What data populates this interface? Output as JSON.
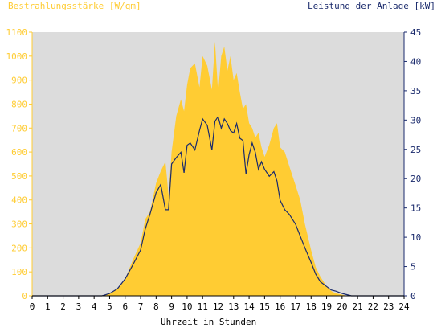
{
  "chart_data": {
    "type": "area",
    "left_axis_title": "Bestrahlungsstärke [W/qm]",
    "right_axis_title": "Leistung der Anlage [kW]",
    "xlabel": "Uhrzeit in Stunden",
    "x_ticks": [
      "0",
      "1",
      "2",
      "3",
      "4",
      "5",
      "6",
      "7",
      "8",
      "9",
      "10",
      "11",
      "12",
      "13",
      "14",
      "15",
      "16",
      "17",
      "18",
      "19",
      "20",
      "21",
      "22",
      "23",
      "24"
    ],
    "y_left_ticks": [
      "0",
      "100",
      "200",
      "300",
      "400",
      "500",
      "600",
      "700",
      "800",
      "900",
      "1000",
      "1100"
    ],
    "y_right_ticks": [
      "0",
      "5",
      "10",
      "15",
      "20",
      "25",
      "30",
      "35",
      "40",
      "45"
    ],
    "xlim": [
      0,
      24
    ],
    "ylim_left": [
      0,
      1100
    ],
    "ylim_right": [
      0,
      45
    ],
    "grid": false,
    "colors": {
      "irradiance": "#ffcc33",
      "power": "#1a2a6c",
      "plot_bg": "#dcdcdc",
      "left_axis": "#ffcc33",
      "right_axis": "#1a2a6c"
    },
    "series": [
      {
        "name": "Bestrahlungsstärke",
        "axis": "left",
        "kind": "area",
        "x": [
          0,
          4.5,
          5,
          5.5,
          6,
          6.5,
          7,
          7.3,
          7.6,
          8,
          8.3,
          8.6,
          8.8,
          9,
          9.3,
          9.6,
          9.8,
          10,
          10.2,
          10.5,
          10.8,
          11,
          11.3,
          11.6,
          11.8,
          12,
          12.2,
          12.4,
          12.6,
          12.8,
          13,
          13.2,
          13.4,
          13.6,
          13.8,
          14,
          14.2,
          14.4,
          14.6,
          14.8,
          15,
          15.3,
          15.6,
          15.8,
          16,
          16.3,
          16.6,
          17,
          17.3,
          17.6,
          18,
          18.3,
          18.6,
          19,
          19.3,
          19.6,
          20,
          20.3,
          20.6,
          21,
          24
        ],
        "y": [
          0,
          0,
          10,
          30,
          70,
          150,
          220,
          320,
          350,
          470,
          520,
          560,
          420,
          600,
          750,
          820,
          770,
          880,
          950,
          970,
          870,
          1000,
          960,
          860,
          1060,
          850,
          1000,
          1040,
          940,
          1000,
          900,
          930,
          850,
          780,
          800,
          720,
          700,
          660,
          680,
          620,
          580,
          630,
          700,
          720,
          620,
          600,
          540,
          460,
          400,
          300,
          190,
          120,
          80,
          40,
          20,
          10,
          5,
          0,
          0,
          0,
          0
        ]
      },
      {
        "name": "Leistung der Anlage",
        "axis": "right",
        "kind": "line",
        "x": [
          0,
          4.5,
          5,
          5.5,
          6,
          6.5,
          7,
          7.3,
          7.6,
          8,
          8.3,
          8.6,
          8.8,
          9,
          9.3,
          9.6,
          9.8,
          10,
          10.2,
          10.5,
          10.8,
          11,
          11.3,
          11.6,
          11.8,
          12,
          12.2,
          12.4,
          12.6,
          12.8,
          13,
          13.2,
          13.4,
          13.6,
          13.8,
          14,
          14.2,
          14.4,
          14.6,
          14.8,
          15,
          15.3,
          15.6,
          15.8,
          16,
          16.3,
          16.6,
          17,
          17.3,
          17.6,
          18,
          18.3,
          18.6,
          19,
          19.3,
          19.6,
          20,
          20.3,
          20.6,
          21,
          24
        ],
        "y": [
          0,
          0,
          0.4,
          1.2,
          2.9,
          5.3,
          7.8,
          11.4,
          13.9,
          17.6,
          19,
          14.7,
          14.7,
          22.5,
          23.6,
          24.5,
          21,
          25.7,
          26.1,
          24.9,
          28.2,
          30.2,
          29.1,
          24.9,
          29.8,
          30.6,
          28.6,
          30.2,
          29.4,
          28.2,
          27.8,
          29.4,
          26.9,
          26.5,
          20.8,
          24.1,
          26.1,
          24.5,
          21.6,
          22.9,
          21.6,
          20.4,
          21.2,
          19.6,
          16.3,
          14.7,
          13.9,
          12.2,
          10.2,
          8.2,
          5.7,
          3.7,
          2.4,
          1.6,
          1.0,
          0.8,
          0.4,
          0.2,
          0,
          0,
          0
        ]
      }
    ]
  }
}
